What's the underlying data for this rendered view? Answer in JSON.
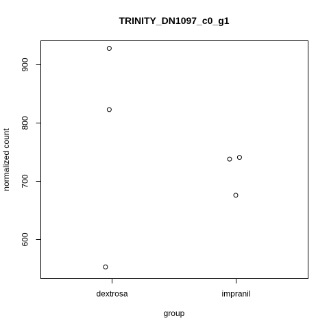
{
  "chart_data": {
    "type": "scatter",
    "title": "TRINITY_DN1097_c0_g1",
    "xlabel": "group",
    "ylabel": "normalized count",
    "categories": [
      "dextrosa",
      "impranil"
    ],
    "yticks": [
      600,
      700,
      800,
      900
    ],
    "ylim": [
      532,
      940
    ],
    "grid": false,
    "legend": "none",
    "points": [
      {
        "group": "dextrosa",
        "jitter": -0.02,
        "y": 927
      },
      {
        "group": "dextrosa",
        "jitter": -0.02,
        "y": 822
      },
      {
        "group": "dextrosa",
        "jitter": -0.05,
        "y": 552
      },
      {
        "group": "impranil",
        "jitter": -0.05,
        "y": 737
      },
      {
        "group": "impranil",
        "jitter": 0.03,
        "y": 740
      },
      {
        "group": "impranil",
        "jitter": 0.0,
        "y": 675
      }
    ]
  }
}
